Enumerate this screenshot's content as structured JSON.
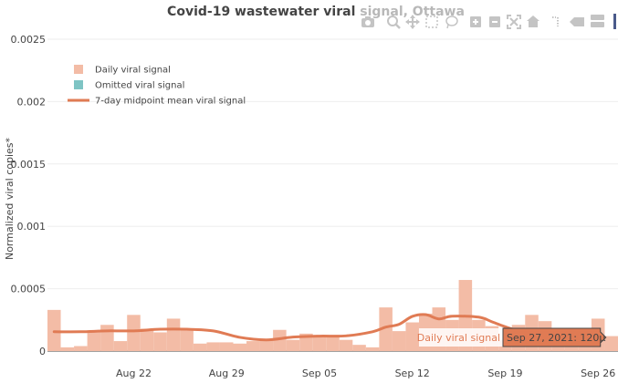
{
  "chart_data": {
    "type": "bar",
    "title": "Covid-19 wastewater viral signal, Ottawa",
    "ylabel": "Normalized viral copies*",
    "xlabel": "",
    "ylim": [
      0,
      0.0025
    ],
    "ytick_values": [
      0,
      0.0005,
      0.001,
      0.0015,
      0.002,
      0.0025
    ],
    "yticks": [
      "0",
      "0.0005",
      "0.001",
      "0.0015",
      "0.002",
      "0.0025"
    ],
    "xlim": [
      "2021-08-16",
      "2021-09-27"
    ],
    "xtick_values": [
      "2021-08-22",
      "2021-08-29",
      "2021-09-05",
      "2021-09-12",
      "2021-09-19",
      "2021-09-26"
    ],
    "xticks": [
      "Aug 22",
      "Aug 29",
      "Sep 05",
      "Sep 12",
      "Sep 19",
      "Sep 26"
    ],
    "legend": {
      "position": "top-left",
      "items": [
        {
          "label": "Daily viral signal",
          "color": "#f3bca6",
          "kind": "box"
        },
        {
          "label": "Omitted viral signal",
          "color": "#7ec4c4",
          "kind": "box"
        },
        {
          "label": "7-day midpoint mean viral signal",
          "color": "#e07b54",
          "kind": "line"
        }
      ]
    },
    "series": [
      {
        "name": "Daily viral signal",
        "type": "bar",
        "color": "#f3bca6",
        "x": [
          "2021-08-16",
          "2021-08-17",
          "2021-08-18",
          "2021-08-19",
          "2021-08-20",
          "2021-08-21",
          "2021-08-22",
          "2021-08-23",
          "2021-08-24",
          "2021-08-25",
          "2021-08-26",
          "2021-08-27",
          "2021-08-28",
          "2021-08-29",
          "2021-08-30",
          "2021-08-31",
          "2021-09-01",
          "2021-09-02",
          "2021-09-03",
          "2021-09-04",
          "2021-09-05",
          "2021-09-06",
          "2021-09-07",
          "2021-09-08",
          "2021-09-09",
          "2021-09-10",
          "2021-09-11",
          "2021-09-12",
          "2021-09-13",
          "2021-09-14",
          "2021-09-15",
          "2021-09-16",
          "2021-09-17",
          "2021-09-18",
          "2021-09-19",
          "2021-09-20",
          "2021-09-21",
          "2021-09-22",
          "2021-09-23",
          "2021-09-24",
          "2021-09-25",
          "2021-09-26",
          "2021-09-27"
        ],
        "values": [
          0.00033,
          3e-05,
          4e-05,
          0.00015,
          0.00021,
          8e-05,
          0.00029,
          0.00018,
          0.00015,
          0.00026,
          0.00018,
          6e-05,
          7e-05,
          7e-05,
          6e-05,
          8e-05,
          9e-05,
          0.00017,
          9e-05,
          0.00014,
          0.00012,
          0.00011,
          9e-05,
          5e-05,
          3e-05,
          0.00035,
          0.00016,
          0.00023,
          0.0003,
          0.00035,
          0.00025,
          0.00057,
          0.00025,
          0.0002,
          9e-05,
          0.00021,
          0.00029,
          0.00024,
          0.00018,
          0.00012,
          0.0001,
          0.00026,
          0.00012
        ]
      },
      {
        "name": "Omitted viral signal",
        "type": "bar",
        "color": "#7ec4c4",
        "x": [],
        "values": []
      },
      {
        "name": "7-day midpoint mean viral signal",
        "type": "line",
        "color": "#e07b54",
        "x": [
          "2021-08-16",
          "2021-08-18",
          "2021-08-20",
          "2021-08-22",
          "2021-08-24",
          "2021-08-26",
          "2021-08-28",
          "2021-08-30",
          "2021-09-01",
          "2021-09-03",
          "2021-09-05",
          "2021-09-07",
          "2021-09-09",
          "2021-09-10",
          "2021-09-11",
          "2021-09-12",
          "2021-09-13",
          "2021-09-14",
          "2021-09-15",
          "2021-09-17",
          "2021-09-18",
          "2021-09-19",
          "2021-09-20"
        ],
        "values": [
          0.000155,
          0.000155,
          0.000162,
          0.000162,
          0.000175,
          0.000175,
          0.000162,
          0.00011,
          9e-05,
          0.000112,
          0.00012,
          0.000122,
          0.000155,
          0.000192,
          0.000215,
          0.000278,
          0.000292,
          0.000258,
          0.00028,
          0.000272,
          0.000235,
          0.000195,
          0.00016
        ]
      }
    ],
    "hover": {
      "series_label": "Daily viral signal",
      "value_label": "Sep 27, 2021: 120µ",
      "date": "2021-09-27",
      "value": 0.00012
    }
  },
  "toolbar": {
    "icons": [
      "camera-icon",
      "zoom-icon",
      "pan-icon",
      "box-select-icon",
      "lasso-select-icon",
      "zoom-in-icon",
      "zoom-out-icon",
      "autoscale-icon",
      "reset-axes-icon",
      "spike-lines-icon",
      "hover-closest-icon",
      "hover-compare-icon"
    ]
  }
}
